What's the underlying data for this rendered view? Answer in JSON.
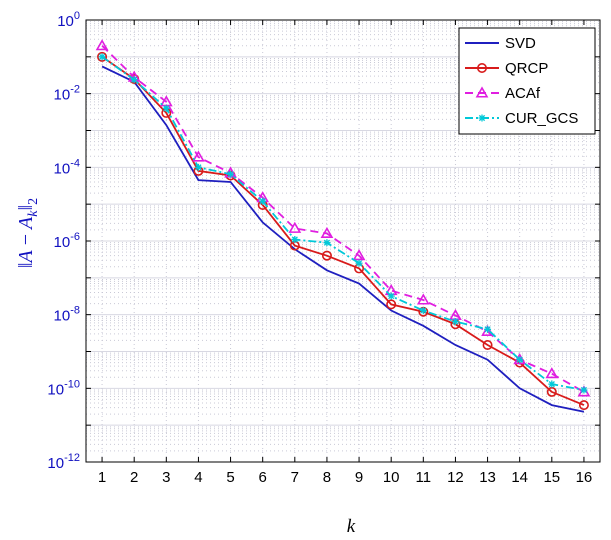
{
  "chart_data": {
    "type": "line",
    "xlabel": "k",
    "ylabel": "||A − A_k||_2",
    "ylabel_parts": {
      "open": "‖",
      "A": "A",
      "minus": " − ",
      "Ak": "A",
      "sub_k": "k",
      "close": "‖",
      "sub_2": "2"
    },
    "yscale": "log",
    "ylim": [
      1e-12,
      1
    ],
    "xlim": [
      0.5,
      16.5
    ],
    "grid": true,
    "legend_position": "top-right",
    "x": [
      1,
      2,
      3,
      4,
      5,
      6,
      7,
      8,
      9,
      10,
      11,
      12,
      13,
      14,
      15,
      16
    ],
    "x_tick_labels": [
      "1",
      "2",
      "3",
      "4",
      "5",
      "6",
      "7",
      "8",
      "9",
      "10",
      "11",
      "12",
      "13",
      "14",
      "15",
      "16"
    ],
    "y_tick_labels": [
      {
        "base": "10",
        "exp": "0"
      },
      {
        "base": "10",
        "exp": "-2"
      },
      {
        "base": "10",
        "exp": "-4"
      },
      {
        "base": "10",
        "exp": "-6"
      },
      {
        "base": "10",
        "exp": "-8"
      },
      {
        "base": "10",
        "exp": "-10"
      },
      {
        "base": "10",
        "exp": "-12"
      }
    ],
    "series": [
      {
        "name": "SVD",
        "color": "#1f1fbf",
        "dash": "solid",
        "marker": "none",
        "values": [
          0.055,
          0.021,
          0.0014,
          4.5e-05,
          4e-05,
          3.2e-06,
          6e-07,
          1.6e-07,
          7e-08,
          1.3e-08,
          5e-09,
          1.5e-09,
          6e-10,
          1e-10,
          3.5e-11,
          2.3e-11
        ]
      },
      {
        "name": "QRCP",
        "color": "#d81b1b",
        "dash": "solid",
        "marker": "circle",
        "values": [
          0.1,
          0.025,
          0.003,
          8e-05,
          6e-05,
          9.5e-06,
          7.5e-07,
          4e-07,
          1.8e-07,
          1.9e-08,
          1.2e-08,
          5.5e-09,
          1.5e-09,
          5e-10,
          8e-11,
          3.5e-11
        ]
      },
      {
        "name": "ACAf",
        "color": "#e01ee0",
        "dash": "dashed",
        "marker": "triangle",
        "values": [
          0.2,
          0.028,
          0.006,
          0.00019,
          7e-05,
          1.5e-05,
          2.2e-06,
          1.6e-06,
          4e-07,
          4.5e-08,
          2.5e-08,
          9.5e-09,
          3.5e-09,
          6e-10,
          2.5e-10,
          8e-11
        ]
      },
      {
        "name": "CUR_GCS",
        "color": "#00c8d8",
        "dash": "dashdot",
        "marker": "star",
        "values": [
          0.1,
          0.024,
          0.004,
          0.0001,
          6.5e-05,
          1.2e-05,
          1.1e-06,
          9e-07,
          2.5e-07,
          3.2e-08,
          1.3e-08,
          6.5e-09,
          4e-09,
          6e-10,
          1.3e-10,
          9e-11
        ]
      }
    ],
    "colors": {
      "axes": "#000000",
      "ytick": "#1010c0",
      "ylabel": "#1010c0",
      "grid_major": "#d8d8e2",
      "grid_minor": "#c9c9d6"
    }
  }
}
